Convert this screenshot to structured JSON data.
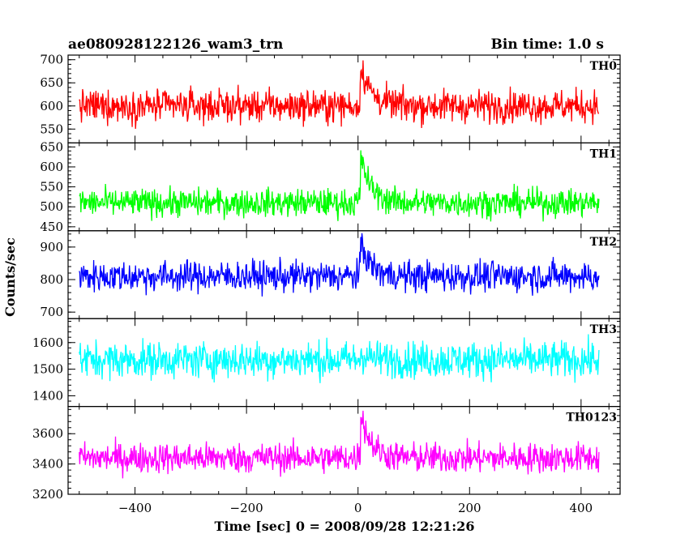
{
  "chart_data": {
    "type": "line",
    "title": "ae080928122126_wam3_trn",
    "subtitle": "Bin time: 1.0 s",
    "xlabel": "Time [sec] 0 = 2008/09/28 12:21:26",
    "ylabel": "Counts/sec",
    "xlim": [
      -520,
      470
    ],
    "xticks": [
      -400,
      -200,
      0,
      200,
      400
    ],
    "x_range": [
      -500,
      432
    ],
    "burst_time": 5,
    "grid": false,
    "panels": [
      {
        "name": "TH0",
        "color": "#ff0000",
        "ylim": [
          520,
          710
        ],
        "yticks": [
          550,
          600,
          650,
          700
        ],
        "baseline": 600,
        "noise": 28,
        "peak": 690,
        "decay_to": 620
      },
      {
        "name": "TH1",
        "color": "#00ff00",
        "ylim": [
          440,
          660
        ],
        "yticks": [
          450,
          500,
          550,
          600,
          650
        ],
        "baseline": 510,
        "noise": 28,
        "peak": 625,
        "decay_to": 535
      },
      {
        "name": "TH2",
        "color": "#0000ff",
        "ylim": [
          680,
          950
        ],
        "yticks": [
          700,
          800,
          900
        ],
        "baseline": 810,
        "noise": 38,
        "peak": 915,
        "decay_to": 830
      },
      {
        "name": "TH3",
        "color": "#00ffff",
        "ylim": [
          1360,
          1690
        ],
        "yticks": [
          1400,
          1500,
          1600
        ],
        "baseline": 1535,
        "noise": 55,
        "peak": 1560,
        "decay_to": 1520
      },
      {
        "name": "TH0123",
        "color": "#ff00ff",
        "ylim": [
          3200,
          3780
        ],
        "yticks": [
          3200,
          3400,
          3600
        ],
        "baseline": 3440,
        "noise": 80,
        "peak": 3740,
        "decay_to": 3470
      }
    ]
  }
}
